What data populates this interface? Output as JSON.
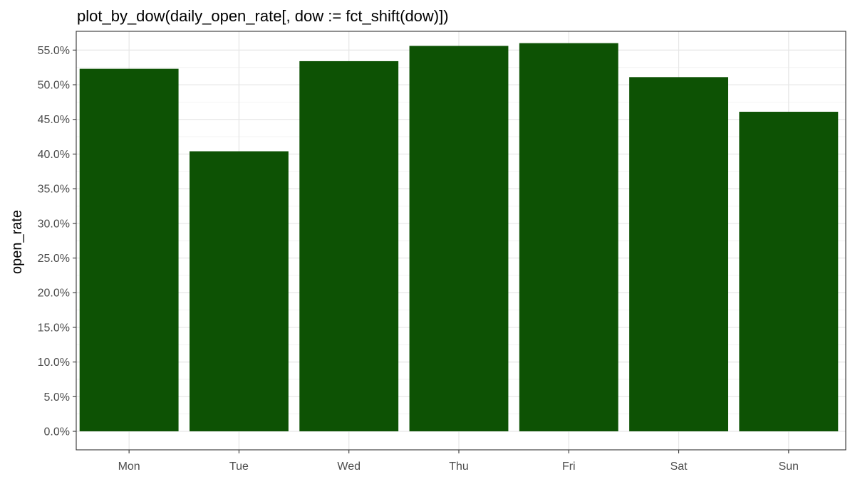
{
  "chart_data": {
    "type": "bar",
    "title": "plot_by_dow(daily_open_rate[, dow := fct_shift(dow)])",
    "xlabel": "",
    "ylabel": "open_rate",
    "categories": [
      "Mon",
      "Tue",
      "Wed",
      "Thu",
      "Fri",
      "Sat",
      "Sun"
    ],
    "values": [
      0.523,
      0.404,
      0.534,
      0.556,
      0.56,
      0.511,
      0.461
    ],
    "ylim": [
      0,
      0.575
    ],
    "yticks": [
      0,
      0.05,
      0.1,
      0.15,
      0.2,
      0.25,
      0.3,
      0.35,
      0.4,
      0.45,
      0.5,
      0.55
    ],
    "ytick_labels": [
      "0.0%",
      "5.0%",
      "10.0%",
      "15.0%",
      "20.0%",
      "25.0%",
      "30.0%",
      "35.0%",
      "40.0%",
      "45.0%",
      "50.0%",
      "55.0%"
    ],
    "bar_color": "#0d5204",
    "grid": true,
    "legend": "none"
  }
}
